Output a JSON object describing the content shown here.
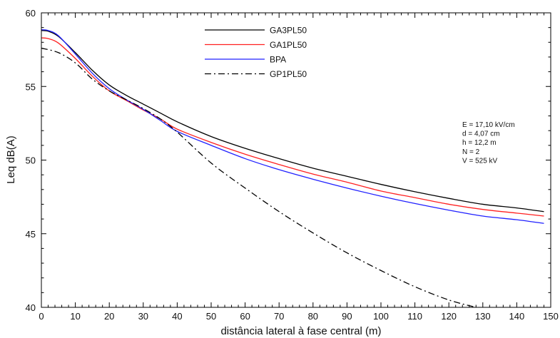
{
  "chart_data": {
    "type": "line",
    "xlabel": "distância lateral à fase central (m)",
    "ylabel": "Leq dB(A)",
    "xlim": [
      0,
      150
    ],
    "ylim": [
      40,
      60
    ],
    "xticks": [
      0,
      10,
      20,
      30,
      40,
      50,
      60,
      70,
      80,
      90,
      100,
      110,
      120,
      130,
      140,
      150
    ],
    "yticks": [
      40,
      45,
      50,
      55,
      60
    ],
    "grid": false,
    "legend_position": "top-center",
    "series": [
      {
        "name": "GA3PL50",
        "color": "#000000",
        "dash": "solid",
        "points": [
          [
            0,
            58.8
          ],
          [
            2,
            58.75
          ],
          [
            5,
            58.4
          ],
          [
            10,
            57.3
          ],
          [
            15,
            56.1
          ],
          [
            20,
            55.1
          ],
          [
            25,
            54.4
          ],
          [
            30,
            53.8
          ],
          [
            35,
            53.2
          ],
          [
            40,
            52.6
          ],
          [
            50,
            51.6
          ],
          [
            60,
            50.8
          ],
          [
            70,
            50.1
          ],
          [
            80,
            49.45
          ],
          [
            90,
            48.9
          ],
          [
            100,
            48.35
          ],
          [
            110,
            47.85
          ],
          [
            120,
            47.4
          ],
          [
            130,
            47.0
          ],
          [
            140,
            46.75
          ],
          [
            148,
            46.5
          ]
        ]
      },
      {
        "name": "GA1PL50",
        "color": "#ff2020",
        "dash": "solid",
        "points": [
          [
            0,
            58.3
          ],
          [
            2,
            58.25
          ],
          [
            5,
            57.95
          ],
          [
            10,
            56.9
          ],
          [
            15,
            55.7
          ],
          [
            20,
            54.7
          ],
          [
            25,
            54.05
          ],
          [
            30,
            53.4
          ],
          [
            35,
            52.8
          ],
          [
            40,
            52.1
          ],
          [
            50,
            51.2
          ],
          [
            60,
            50.4
          ],
          [
            70,
            49.7
          ],
          [
            80,
            49.05
          ],
          [
            90,
            48.5
          ],
          [
            100,
            47.9
          ],
          [
            110,
            47.45
          ],
          [
            120,
            47.0
          ],
          [
            130,
            46.65
          ],
          [
            140,
            46.4
          ],
          [
            148,
            46.2
          ]
        ]
      },
      {
        "name": "BPA",
        "color": "#2020ff",
        "dash": "solid",
        "points": [
          [
            0,
            58.85
          ],
          [
            2,
            58.8
          ],
          [
            5,
            58.45
          ],
          [
            10,
            57.2
          ],
          [
            15,
            55.9
          ],
          [
            20,
            54.85
          ],
          [
            25,
            54.1
          ],
          [
            30,
            53.45
          ],
          [
            35,
            52.7
          ],
          [
            40,
            51.95
          ],
          [
            50,
            51.0
          ],
          [
            60,
            50.1
          ],
          [
            70,
            49.35
          ],
          [
            80,
            48.7
          ],
          [
            90,
            48.1
          ],
          [
            100,
            47.55
          ],
          [
            110,
            47.05
          ],
          [
            120,
            46.6
          ],
          [
            130,
            46.2
          ],
          [
            140,
            45.95
          ],
          [
            148,
            45.7
          ]
        ]
      },
      {
        "name": "GP1PL50",
        "color": "#000000",
        "dash": "dashdot",
        "points": [
          [
            0,
            57.6
          ],
          [
            5,
            57.3
          ],
          [
            10,
            56.6
          ],
          [
            15,
            55.5
          ],
          [
            20,
            54.7
          ],
          [
            25,
            54.1
          ],
          [
            30,
            53.5
          ],
          [
            35,
            52.8
          ],
          [
            40,
            51.9
          ],
          [
            50,
            49.8
          ],
          [
            60,
            48.1
          ],
          [
            70,
            46.5
          ],
          [
            80,
            45.05
          ],
          [
            90,
            43.7
          ],
          [
            100,
            42.5
          ],
          [
            110,
            41.4
          ],
          [
            120,
            40.5
          ],
          [
            128,
            40.0
          ]
        ]
      }
    ],
    "annotations": [
      "E = 17,10 kV/cm",
      "d = 4,07 cm",
      "h = 12,2 m",
      "N = 2",
      "V = 525 kV"
    ]
  }
}
